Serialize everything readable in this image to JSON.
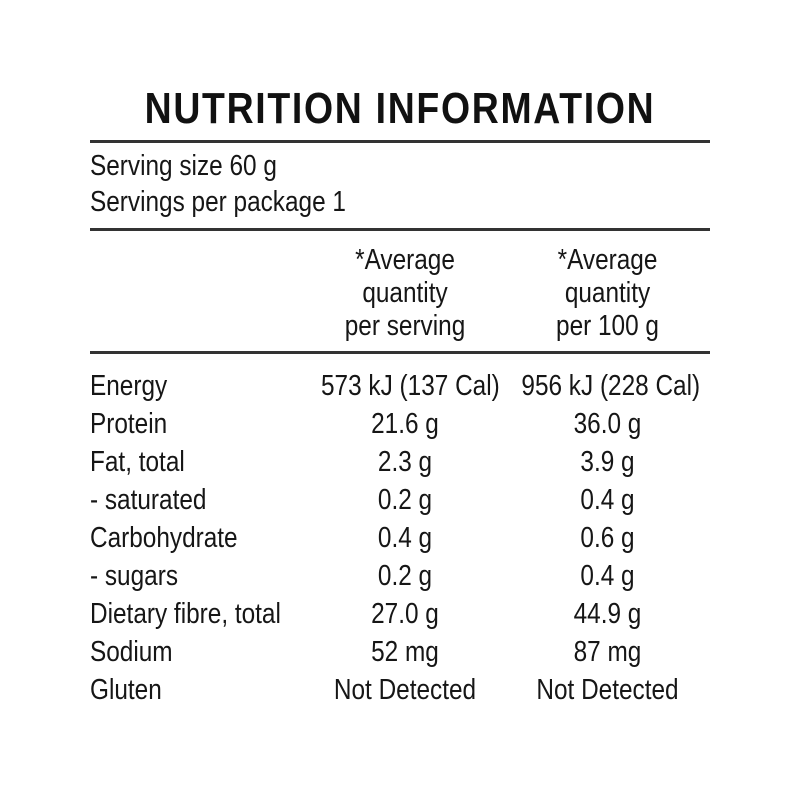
{
  "title": "NUTRITION INFORMATION",
  "serving_info": {
    "serving_size": "Serving size 60 g",
    "servings_per_package": "Servings per package 1"
  },
  "table": {
    "column_headers": {
      "per_serving": "*Average\nquantity\nper serving",
      "per_100g": "*Average\nquantity\nper 100 g"
    },
    "rows": [
      {
        "nutrient": "Energy",
        "per_serving": "573 kJ (137 Cal)",
        "per_100g": "956 kJ (228 Cal)"
      },
      {
        "nutrient": "Protein",
        "per_serving": "21.6 g",
        "per_100g": "36.0 g"
      },
      {
        "nutrient": "Fat, total",
        "per_serving": "2.3 g",
        "per_100g": "3.9 g"
      },
      {
        "nutrient": "- saturated",
        "per_serving": "0.2 g",
        "per_100g": "0.4 g"
      },
      {
        "nutrient": "Carbohydrate",
        "per_serving": "0.4 g",
        "per_100g": "0.6 g"
      },
      {
        "nutrient": "- sugars",
        "per_serving": "0.2 g",
        "per_100g": "0.4 g"
      },
      {
        "nutrient": "Dietary fibre, total",
        "per_serving": "27.0 g",
        "per_100g": "44.9 g"
      },
      {
        "nutrient": "Sodium",
        "per_serving": "52 mg",
        "per_100g": "87 mg"
      },
      {
        "nutrient": "Gluten",
        "per_serving": "Not Detected",
        "per_100g": "Not Detected"
      }
    ]
  },
  "colors": {
    "background": "#ffffff",
    "text": "#161616",
    "rule": "#333333"
  }
}
